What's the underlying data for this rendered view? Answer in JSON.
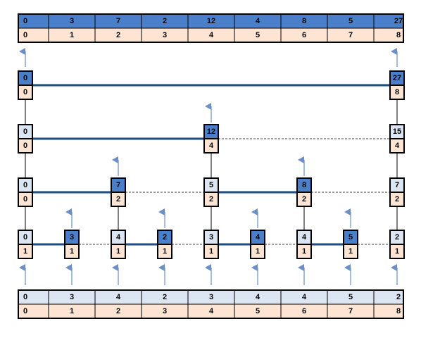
{
  "colors": {
    "dark_blue": "#4a7fc9",
    "light_blue": "#dce6f2",
    "peach": "#fde4d3",
    "border": "#000000",
    "link_line": "#1e4a85",
    "arrow": "#6b8fc9"
  },
  "top_array": {
    "values": [
      "0",
      "3",
      "7",
      "2",
      "12",
      "4",
      "8",
      "5",
      "27"
    ],
    "indices": [
      "0",
      "1",
      "2",
      "3",
      "4",
      "5",
      "6",
      "7",
      "8"
    ]
  },
  "bottom_array": {
    "values": [
      "0",
      "3",
      "4",
      "2",
      "3",
      "4",
      "4",
      "5",
      "2"
    ],
    "indices": [
      "0",
      "1",
      "2",
      "3",
      "4",
      "5",
      "6",
      "7",
      "8"
    ]
  },
  "levels": [
    {
      "nodes": [
        {
          "col": 0,
          "value": "0",
          "index": "1",
          "dark": false
        },
        {
          "col": 1,
          "value": "3",
          "index": "1",
          "dark": true,
          "arrow": true
        },
        {
          "col": 2,
          "value": "4",
          "index": "1",
          "dark": false
        },
        {
          "col": 3,
          "value": "2",
          "index": "1",
          "dark": true,
          "arrow": true
        },
        {
          "col": 4,
          "value": "3",
          "index": "1",
          "dark": false
        },
        {
          "col": 5,
          "value": "4",
          "index": "1",
          "dark": true,
          "arrow": true
        },
        {
          "col": 6,
          "value": "4",
          "index": "1",
          "dark": false
        },
        {
          "col": 7,
          "value": "5",
          "index": "1",
          "dark": true,
          "arrow": true
        },
        {
          "col": 8,
          "value": "2",
          "index": "1",
          "dark": false
        }
      ],
      "links": [
        [
          0,
          1,
          "solid"
        ],
        [
          1,
          2,
          "dashed"
        ],
        [
          2,
          3,
          "solid"
        ],
        [
          3,
          4,
          "dashed"
        ],
        [
          4,
          5,
          "solid"
        ],
        [
          5,
          6,
          "dashed"
        ],
        [
          6,
          7,
          "solid"
        ],
        [
          7,
          8,
          "dashed"
        ]
      ]
    },
    {
      "nodes": [
        {
          "col": 0,
          "value": "0",
          "index": "0",
          "dark": false
        },
        {
          "col": 2,
          "value": "7",
          "index": "2",
          "dark": true,
          "arrow": true
        },
        {
          "col": 4,
          "value": "5",
          "index": "2",
          "dark": false
        },
        {
          "col": 6,
          "value": "8",
          "index": "2",
          "dark": true,
          "arrow": true
        },
        {
          "col": 8,
          "value": "7",
          "index": "2",
          "dark": false
        }
      ],
      "links": [
        [
          0,
          2,
          "solid"
        ],
        [
          2,
          4,
          "dashed"
        ],
        [
          4,
          6,
          "solid"
        ],
        [
          6,
          8,
          "dashed"
        ]
      ]
    },
    {
      "nodes": [
        {
          "col": 0,
          "value": "0",
          "index": "0",
          "dark": false
        },
        {
          "col": 4,
          "value": "12",
          "index": "4",
          "dark": true,
          "arrow": true
        },
        {
          "col": 8,
          "value": "15",
          "index": "4",
          "dark": false
        }
      ],
      "links": [
        [
          0,
          4,
          "solid"
        ],
        [
          4,
          8,
          "dashed"
        ]
      ]
    },
    {
      "nodes": [
        {
          "col": 0,
          "value": "0",
          "index": "0",
          "dark": true
        },
        {
          "col": 8,
          "value": "27",
          "index": "8",
          "dark": true
        }
      ],
      "links": [
        [
          0,
          8,
          "solid"
        ]
      ]
    }
  ]
}
